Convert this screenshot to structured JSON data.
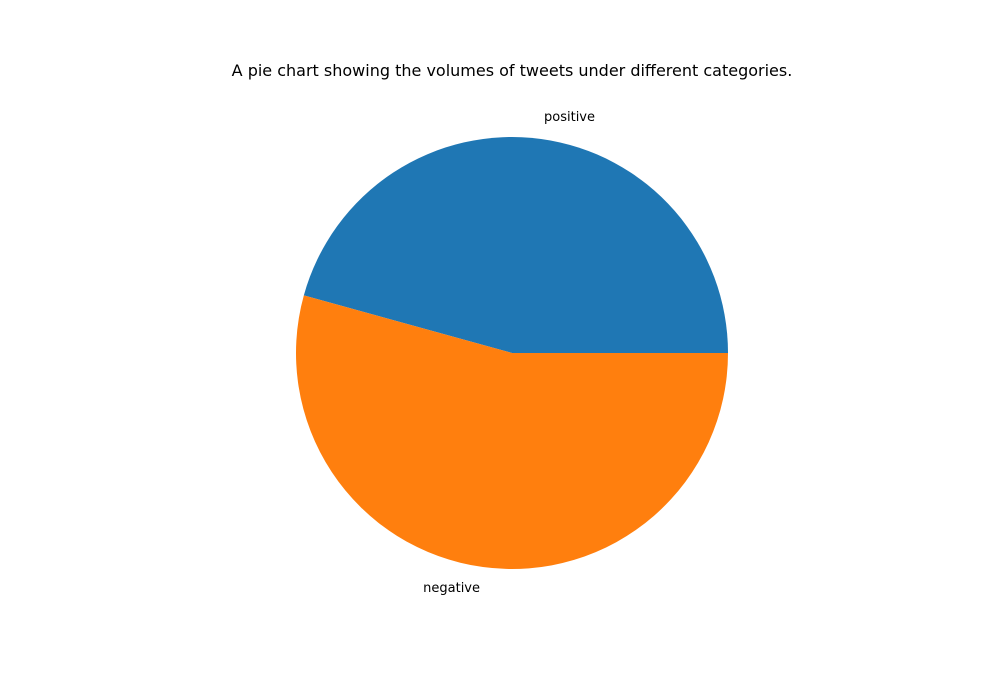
{
  "chart_data": {
    "type": "pie",
    "title": "A pie chart showing the volumes of tweets under different categories.",
    "labels": [
      "positive",
      "negative"
    ],
    "values": [
      45.7,
      54.3
    ],
    "colors": [
      "#1f77b4",
      "#ff7f0e"
    ],
    "start_angle_deg": 0,
    "direction": "counterclockwise"
  }
}
